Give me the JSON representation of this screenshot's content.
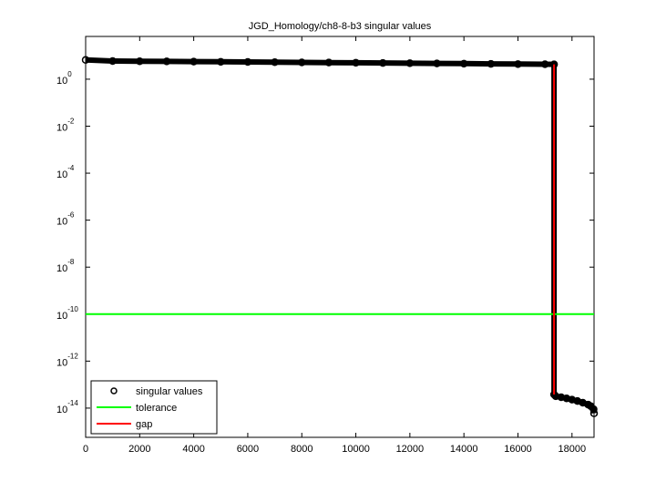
{
  "chart_data": {
    "type": "line",
    "title": "JGD_Homology/ch8-8-b3 singular values",
    "xlim": [
      0,
      18816
    ],
    "xticks": [
      0,
      2000,
      4000,
      6000,
      8000,
      10000,
      12000,
      14000,
      16000,
      18000
    ],
    "ylim": [
      5.7e-16,
      66
    ],
    "yscale": "log",
    "yticks": [
      {
        "value": 1e-14,
        "label": "10",
        "exponent": "-14"
      },
      {
        "value": 1e-12,
        "label": "10",
        "exponent": "-12"
      },
      {
        "value": 1e-10,
        "label": "10",
        "exponent": "-10"
      },
      {
        "value": 1e-08,
        "label": "10",
        "exponent": "-8"
      },
      {
        "value": 1e-06,
        "label": "10",
        "exponent": "-6"
      },
      {
        "value": 0.0001,
        "label": "10",
        "exponent": "-4"
      },
      {
        "value": 0.01,
        "label": "10",
        "exponent": "-2"
      },
      {
        "value": 1,
        "label": "10",
        "exponent": "0"
      }
    ],
    "legend": "lower left",
    "series": [
      {
        "name": "singular values",
        "color": "#000000",
        "marker": "o",
        "x": [
          1,
          1000,
          2000,
          3000,
          4000,
          5000,
          6000,
          7000,
          8000,
          9000,
          10000,
          11000,
          12000,
          13000,
          14000,
          15000,
          16000,
          17000,
          17336,
          17337,
          17400,
          17600,
          17800,
          18000,
          18200,
          18400,
          18600,
          18700,
          18800,
          18816
        ],
        "values": [
          6.6,
          5.9,
          5.8,
          5.7,
          5.6,
          5.5,
          5.4,
          5.3,
          5.2,
          5.1,
          5.0,
          4.9,
          4.8,
          4.7,
          4.6,
          4.5,
          4.4,
          4.35,
          4.3,
          3.8e-14,
          3.2e-14,
          2.9e-14,
          2.6e-14,
          2.3e-14,
          2e-14,
          1.7e-14,
          1.4e-14,
          1.2e-14,
          9e-15,
          6e-15
        ]
      },
      {
        "name": "tolerance",
        "color": "#00ff00",
        "x": [
          0,
          18816
        ],
        "values": [
          1e-10,
          1e-10
        ]
      },
      {
        "name": "gap",
        "color": "#ff0000",
        "x": [
          17336,
          17336
        ],
        "values": [
          4.3,
          3.8e-14
        ]
      }
    ]
  }
}
